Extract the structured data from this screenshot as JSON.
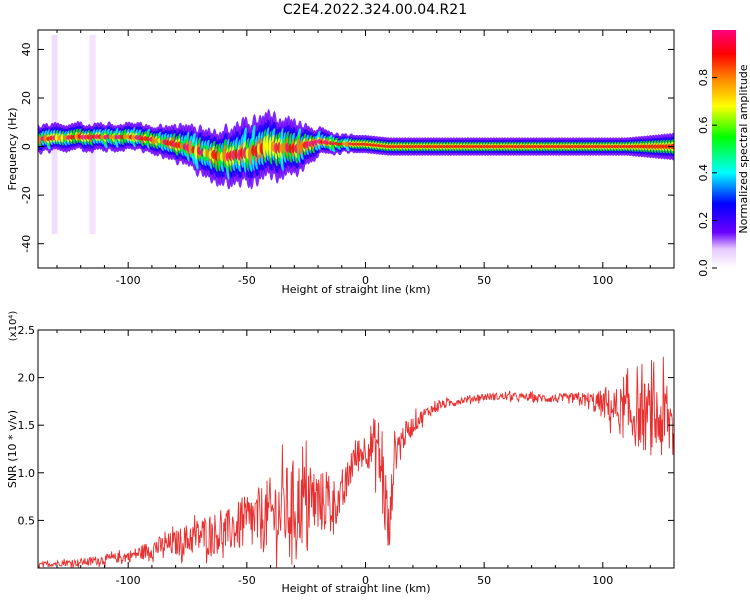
{
  "title": "C2E4.2022.324.00.04.R21",
  "colors": {
    "snr_line": "#e83030",
    "axis": "#000000",
    "background": "#ffffff"
  },
  "chart_data": [
    {
      "type": "heatmap",
      "xlabel": "Height of straight line (km)",
      "ylabel": "Frequency (Hz)",
      "xlim": [
        -138,
        130
      ],
      "ylim": [
        -50,
        48
      ],
      "x_ticks": [
        -100,
        -50,
        0,
        50,
        100
      ],
      "y_ticks": [
        -40,
        -20,
        0,
        20,
        40
      ],
      "colorbar": {
        "label": "Normalized spectral amplitude",
        "range": [
          0.0,
          1.0
        ],
        "ticks": [
          0.0,
          0.2,
          0.4,
          0.6,
          0.8
        ],
        "colors": [
          "#ffffff",
          "#6a00ff",
          "#0000ff",
          "#00ffff",
          "#00ff00",
          "#ffff00",
          "#ff8000",
          "#ff0000",
          "#ff0080"
        ]
      },
      "ridge": {
        "x": [
          -138,
          -120,
          -110,
          -100,
          -90,
          -80,
          -70,
          -60,
          -50,
          -40,
          -30,
          -20,
          -10,
          0,
          10,
          30,
          50,
          70,
          90,
          110,
          130
        ],
        "center_hz": [
          3,
          4,
          4,
          4,
          3,
          1,
          -2,
          -4,
          -3,
          0,
          -1,
          2,
          1,
          1,
          0,
          0,
          0,
          0,
          0,
          0,
          0
        ],
        "halfwidth_hz": [
          3,
          3,
          3,
          3,
          3,
          4,
          5,
          6,
          7,
          7,
          6,
          3,
          2,
          2,
          2,
          2,
          2,
          2,
          2,
          2,
          3
        ]
      }
    },
    {
      "type": "line",
      "xlabel": "Height of straight line (km)",
      "ylabel": "SNR (10 * v/v)",
      "y_multiplier": "(x10⁴)",
      "xlim": [
        -138,
        130
      ],
      "ylim": [
        0.0,
        2.5
      ],
      "x_ticks": [
        -100,
        -50,
        0,
        50,
        100
      ],
      "y_ticks": [
        0.5,
        1.0,
        1.5,
        2.0,
        2.5
      ],
      "series": [
        {
          "x": [
            -138,
            -130,
            -120,
            -110,
            -100,
            -95,
            -90,
            -85,
            -80,
            -75,
            -70,
            -65,
            -60,
            -55,
            -50,
            -45,
            -40,
            -35,
            -30,
            -25,
            -20,
            -15,
            -10,
            -5,
            0,
            5,
            8,
            10,
            12,
            15,
            20,
            25,
            30,
            40,
            50,
            60,
            70,
            80,
            90,
            100,
            110,
            120,
            130
          ],
          "y": [
            0.03,
            0.05,
            0.06,
            0.09,
            0.12,
            0.16,
            0.2,
            0.23,
            0.26,
            0.3,
            0.34,
            0.37,
            0.36,
            0.42,
            0.47,
            0.5,
            0.56,
            0.6,
            0.66,
            0.7,
            0.7,
            0.68,
            0.72,
            1.15,
            1.25,
            1.3,
            0.8,
            0.3,
            1.2,
            1.35,
            1.5,
            1.62,
            1.7,
            1.76,
            1.8,
            1.8,
            1.79,
            1.78,
            1.78,
            1.72,
            1.62,
            1.58,
            1.5
          ],
          "noise": [
            0.03,
            0.03,
            0.04,
            0.05,
            0.06,
            0.08,
            0.1,
            0.12,
            0.14,
            0.17,
            0.2,
            0.22,
            0.22,
            0.25,
            0.3,
            0.35,
            0.4,
            0.45,
            0.5,
            0.45,
            0.35,
            0.3,
            0.2,
            0.2,
            0.18,
            0.35,
            0.5,
            0.3,
            0.25,
            0.15,
            0.1,
            0.07,
            0.05,
            0.04,
            0.04,
            0.04,
            0.04,
            0.05,
            0.06,
            0.15,
            0.3,
            0.4,
            0.45
          ]
        }
      ]
    }
  ]
}
